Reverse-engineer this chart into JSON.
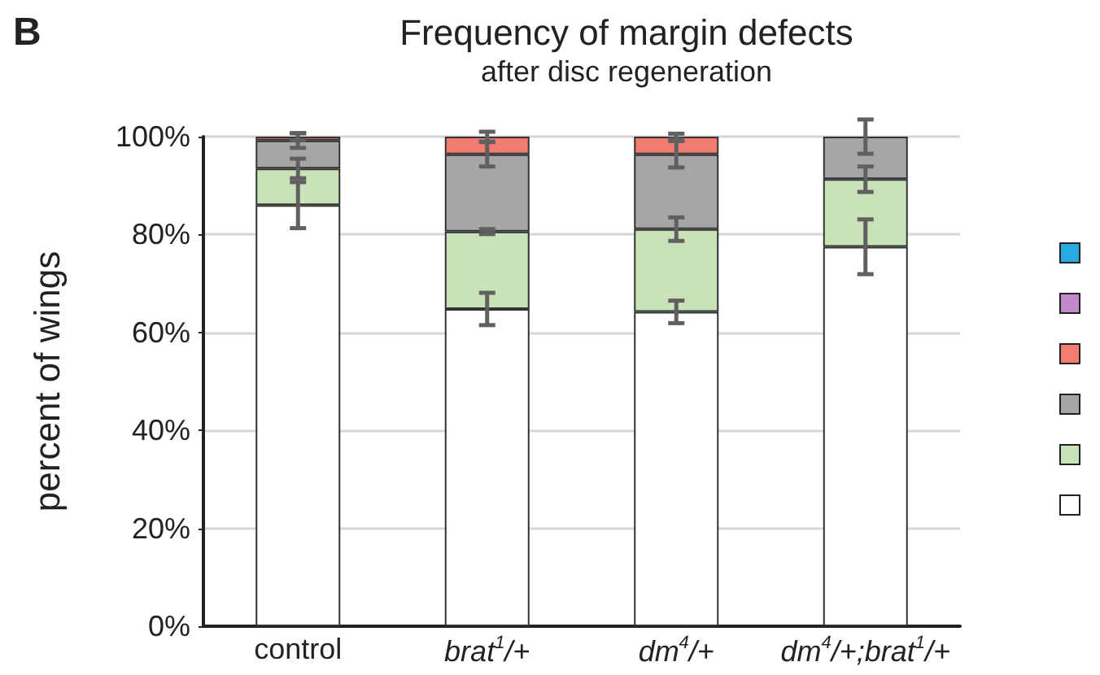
{
  "chart_data": {
    "type": "bar",
    "title": "Frequency of margin defects",
    "subtitle": "after disc regeneration",
    "ylabel": "percent of wings",
    "annotations": [
      "B"
    ],
    "categories": [
      "control",
      "brat$^{1}$/+",
      "dm$^{4}$/+",
      "dm$^{4}$/+;brat$^{1}$/+"
    ],
    "stacked": true,
    "series": [
      {
        "color": "#ffffff",
        "values": [
          86,
          64.8,
          64.2,
          77.5
        ],
        "errors": [
          4.7,
          3.3,
          2.3,
          5.6
        ]
      },
      {
        "color": "#c9e2b8",
        "values": [
          7.5,
          15.8,
          16.9,
          13.8
        ],
        "errors": [
          2,
          0.5,
          2.4,
          2.6
        ]
      },
      {
        "color": "#a6a6a6",
        "values": [
          5.7,
          15.8,
          15.3,
          8.7
        ],
        "errors": [
          1.5,
          2.5,
          2.7,
          3.5
        ]
      },
      {
        "color": "#f47b72",
        "values": [
          0.8,
          3.6,
          3.6,
          0
        ],
        "errors": [
          0.7,
          1,
          0.6,
          null
        ]
      },
      {
        "color": "#c08ac8",
        "values": [
          0,
          0,
          0,
          0
        ]
      },
      {
        "color": "#29abe2",
        "values": [
          0,
          0,
          0,
          0
        ]
      }
    ],
    "ylim": [
      0,
      100
    ],
    "yticks": [
      {
        "value": 0,
        "label": "0%"
      },
      {
        "value": 20,
        "label": "20%"
      },
      {
        "value": 40,
        "label": "40%"
      },
      {
        "value": 60,
        "label": "60%"
      },
      {
        "value": 80,
        "label": "80%"
      },
      {
        "value": 100,
        "label": "100%"
      }
    ],
    "grid": "y"
  }
}
